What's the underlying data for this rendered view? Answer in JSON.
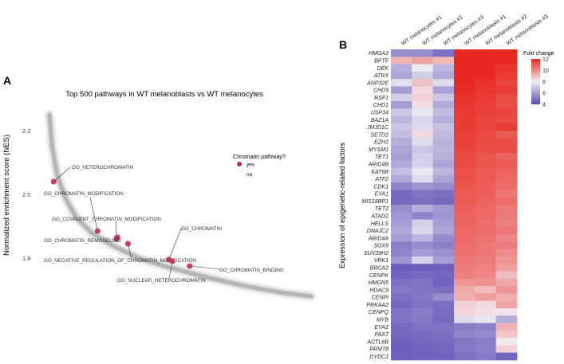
{
  "chart_data": [
    {
      "panel": "A",
      "type": "scatter",
      "title": "Top 500 pathways in WT melanoblasts vs WT melanocytes",
      "xlabel": "",
      "ylabel": "Normalized enrichment score (NES)",
      "ylim": [
        1.58,
        2.27
      ],
      "xlim": [
        0,
        500
      ],
      "yticks": [
        "1.8",
        "2.0",
        "2.2"
      ],
      "ytick_values": [
        1.8,
        2.0,
        2.2
      ],
      "grid": false,
      "curve_description": "ranked NES of top 500 pathways, decreasing from ~2.25 to ~1.68",
      "curve": {
        "x": [
          0,
          5,
          15,
          30,
          50,
          80,
          120,
          170,
          230,
          300,
          380,
          450,
          500
        ],
        "y": [
          2.25,
          2.15,
          2.06,
          1.99,
          1.93,
          1.88,
          1.84,
          1.8,
          1.77,
          1.74,
          1.71,
          1.69,
          1.68
        ]
      },
      "legend": {
        "title": "Chromatin pathway?",
        "placement": "right",
        "entries": [
          {
            "label": "yes",
            "color": "#c0304a"
          },
          {
            "label": "no",
            "color": "#cccccc"
          }
        ]
      },
      "highlighted": [
        {
          "label": "GO_HETEROCHROMATIN",
          "x": 8,
          "y": 2.04
        },
        {
          "label": "GO_CHROMATIN_MODIFICATION",
          "x": 92,
          "y": 1.885
        },
        {
          "label": "GO_COVALENT_CHROMATIN_MODIFICATION",
          "x": 128,
          "y": 1.86
        },
        {
          "label": "GO_CHROMATIN_REMODELING",
          "x": 130,
          "y": 1.865
        },
        {
          "label": "GO_NEGATIVE_REGULATION_OF_CHROMATIN_MODIFICATION",
          "x": 150,
          "y": 1.845
        },
        {
          "label": "GO_CHROMATIN",
          "x": 228,
          "y": 1.795
        },
        {
          "label": "GO_NUCLEAR_HETEROCHROMATIN",
          "x": 235,
          "y": 1.79
        },
        {
          "label": "GO_CHROMATIN_BINDING",
          "x": 268,
          "y": 1.775
        }
      ]
    },
    {
      "panel": "B",
      "type": "heatmap",
      "title": "",
      "ylabel": "Expression of epigenetic-related factors",
      "columns": [
        "WT melanocytes #1",
        "WT melanocytes #2",
        "WT melanocytes #3",
        "WT melanoblasts #1",
        "WT melanoblasts #2",
        "WT melanoblasts #3"
      ],
      "rows": [
        "HMGA2",
        "BPTF",
        "DEK",
        "ATRX",
        "ANP32E",
        "CHD9",
        "RSF1",
        "CHD1",
        "USP34",
        "BAZ1A",
        "JMJD1C",
        "SETD2",
        "EZH2",
        "MYSM1",
        "TET1",
        "ARID4B",
        "KAT6B",
        "ATF2",
        "CDK1",
        "EYA1",
        "MIS18BP1",
        "TET2",
        "ATAD2",
        "HELLS",
        "DNAJC2",
        "ARID4A",
        "SOX9",
        "SUV39H2",
        "VRK1",
        "BRCA2",
        "CENPK",
        "HMGN5",
        "HDAC9",
        "CENPI",
        "PRKAA2",
        "CENPQ",
        "MYB",
        "EYA2",
        "PAX7",
        "ACTL6B",
        "PRMT8",
        "DYDC2"
      ],
      "colorbar": {
        "title": "Fold change",
        "ticks": [
          4,
          6,
          8,
          10,
          12
        ],
        "range": [
          4,
          12
        ],
        "low_color": "#5a4cb4",
        "mid_color": "#f2eef4",
        "high_color": "#e8281e"
      },
      "values": [
        [
          5.6,
          5.6,
          4.9,
          12.0,
          12.0,
          12.0
        ],
        [
          9.2,
          9.5,
          9.1,
          12.0,
          12.0,
          12.0
        ],
        [
          6.4,
          7.9,
          6.6,
          12.0,
          12.0,
          11.7
        ],
        [
          6.2,
          7.2,
          6.3,
          12.0,
          12.0,
          11.6
        ],
        [
          7.6,
          8.9,
          7.5,
          12.0,
          11.8,
          11.4
        ],
        [
          6.0,
          8.4,
          6.1,
          11.9,
          11.7,
          11.6
        ],
        [
          7.2,
          8.6,
          7.0,
          11.8,
          11.6,
          11.3
        ],
        [
          6.0,
          8.3,
          6.3,
          11.7,
          11.5,
          11.2
        ],
        [
          7.0,
          7.8,
          6.8,
          11.6,
          11.5,
          11.4
        ],
        [
          6.6,
          7.4,
          6.4,
          11.6,
          11.4,
          11.3
        ],
        [
          7.0,
          7.5,
          6.9,
          11.6,
          11.4,
          11.6
        ],
        [
          6.8,
          8.4,
          6.7,
          11.5,
          11.3,
          11.0
        ],
        [
          6.4,
          7.5,
          6.5,
          11.5,
          11.3,
          11.2
        ],
        [
          6.2,
          7.0,
          6.6,
          11.4,
          11.2,
          11.2
        ],
        [
          6.0,
          7.2,
          6.5,
          11.3,
          11.1,
          10.8
        ],
        [
          6.3,
          7.3,
          6.2,
          11.3,
          11.1,
          11.0
        ],
        [
          6.8,
          7.8,
          6.6,
          11.2,
          11.0,
          10.8
        ],
        [
          6.3,
          7.5,
          6.2,
          11.2,
          11.0,
          10.7
        ],
        [
          5.4,
          5.8,
          5.6,
          11.1,
          10.9,
          10.6
        ],
        [
          4.8,
          5.0,
          4.9,
          11.0,
          10.9,
          10.4
        ],
        [
          4.7,
          4.9,
          4.7,
          11.0,
          10.8,
          10.6
        ],
        [
          5.6,
          6.4,
          5.9,
          10.9,
          10.7,
          10.4
        ],
        [
          5.8,
          5.4,
          5.8,
          10.8,
          10.7,
          10.3
        ],
        [
          6.0,
          7.2,
          6.0,
          10.8,
          10.6,
          10.2
        ],
        [
          6.3,
          7.4,
          6.2,
          10.7,
          10.6,
          10.4
        ],
        [
          6.0,
          6.6,
          5.6,
          10.7,
          10.5,
          10.1
        ],
        [
          5.2,
          5.6,
          5.3,
          10.6,
          10.4,
          10.3
        ],
        [
          5.4,
          6.0,
          5.7,
          10.5,
          10.4,
          10.0
        ],
        [
          5.8,
          7.3,
          6.0,
          10.4,
          10.3,
          9.8
        ],
        [
          4.4,
          4.5,
          4.5,
          10.3,
          10.2,
          9.6
        ],
        [
          4.6,
          4.8,
          4.7,
          10.2,
          10.1,
          9.0
        ],
        [
          4.9,
          5.0,
          4.6,
          9.8,
          9.9,
          9.4
        ],
        [
          5.1,
          5.0,
          4.9,
          9.4,
          9.0,
          9.8
        ],
        [
          4.9,
          5.1,
          5.6,
          9.3,
          9.6,
          9.3
        ],
        [
          4.7,
          5.0,
          4.9,
          8.6,
          8.4,
          9.5
        ],
        [
          5.0,
          5.2,
          4.8,
          8.5,
          8.3,
          8.2
        ],
        [
          5.0,
          5.1,
          4.7,
          7.5,
          7.8,
          6.4
        ],
        [
          4.8,
          5.0,
          5.0,
          5.2,
          5.3,
          9.2
        ],
        [
          4.7,
          4.8,
          4.9,
          5.4,
          5.5,
          8.8
        ],
        [
          4.6,
          4.7,
          4.8,
          5.0,
          5.2,
          8.1
        ],
        [
          4.5,
          4.6,
          4.7,
          5.1,
          5.3,
          8.6
        ],
        [
          4.5,
          4.6,
          4.6,
          4.9,
          5.1,
          4.6
        ]
      ]
    }
  ],
  "labels": {
    "panel_a": "A",
    "panel_b": "B"
  }
}
